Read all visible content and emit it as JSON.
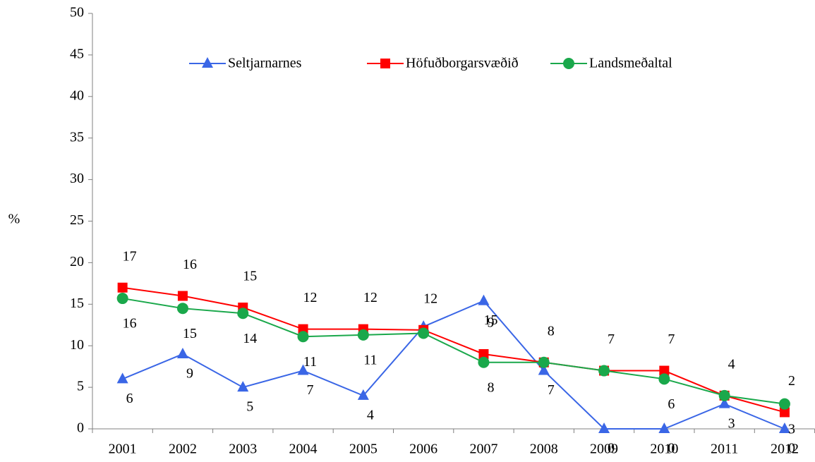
{
  "chart_data": {
    "type": "line",
    "y_label": "%",
    "categories": [
      "2001",
      "2002",
      "2003",
      "2004",
      "2005",
      "2006",
      "2007",
      "2008",
      "2009",
      "2010",
      "2011",
      "2012"
    ],
    "ylim": [
      0,
      50
    ],
    "yticks": [
      0,
      5,
      10,
      15,
      20,
      25,
      30,
      35,
      40,
      45,
      50
    ],
    "series": [
      {
        "name": "Seltjarnarnes",
        "color": "#3a66e6",
        "marker": "triangle",
        "values": [
          6,
          9,
          5,
          7,
          4,
          12.3,
          15.4,
          7,
          0,
          0,
          3,
          0
        ],
        "value_labels": [
          "6",
          "9",
          "5",
          "7",
          "4",
          null,
          "15",
          "7",
          "0",
          "0",
          "3",
          "0"
        ]
      },
      {
        "name": "Höfuðborgarsvæðið",
        "color": "#ff0000",
        "marker": "square",
        "values": [
          17,
          16,
          14.6,
          12,
          12,
          11.9,
          9,
          8,
          7,
          7,
          4,
          2
        ],
        "value_labels": [
          "17",
          "16",
          "15",
          "12",
          "12",
          "12",
          "9",
          "8",
          "7",
          "7",
          "4",
          "2"
        ]
      },
      {
        "name": "Landsmeðaltal",
        "color": "#1aa84b",
        "marker": "circle",
        "values": [
          15.7,
          14.5,
          13.9,
          11.1,
          11.3,
          11.5,
          8,
          8,
          7,
          6,
          4,
          3
        ],
        "value_labels": [
          "16",
          "15",
          "14",
          "11",
          "11",
          null,
          "8",
          null,
          null,
          "6",
          null,
          "3"
        ]
      }
    ]
  }
}
